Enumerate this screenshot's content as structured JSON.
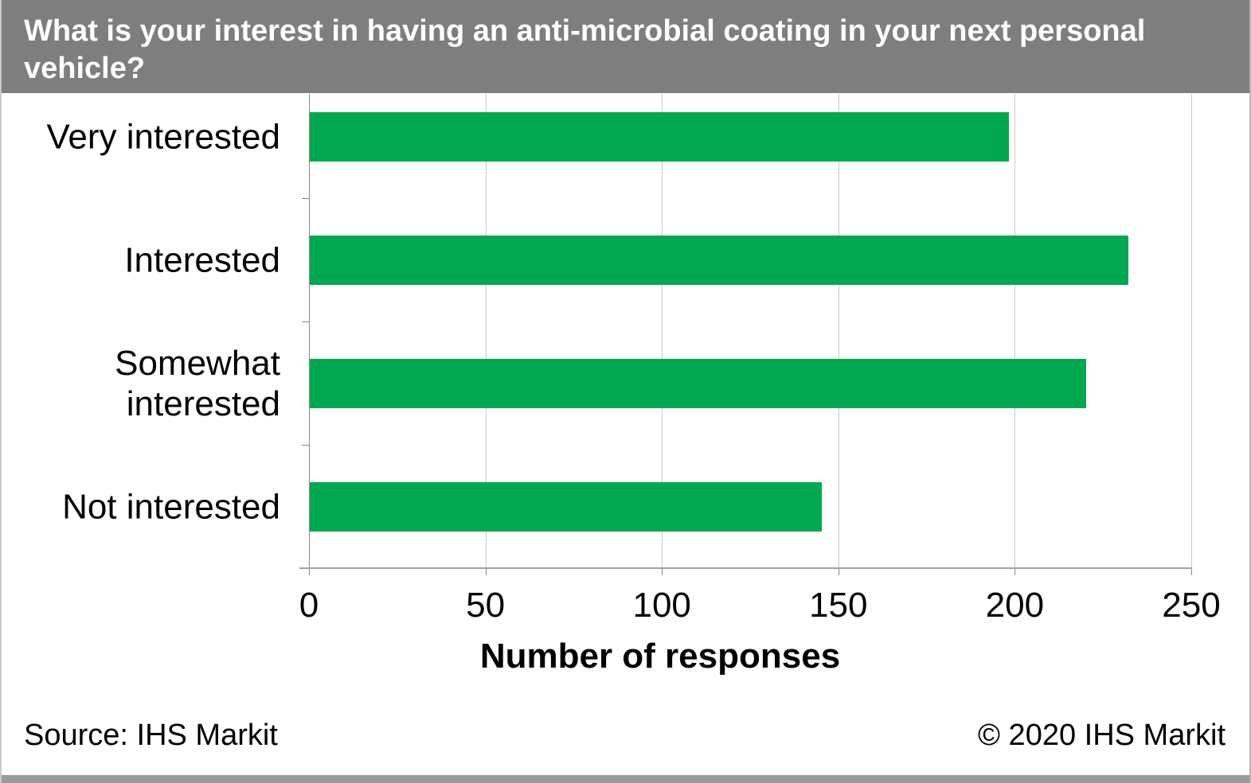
{
  "title": "What is your interest in having an anti-microbial coating in your next personal vehicle?",
  "chart_data": {
    "type": "bar",
    "orientation": "horizontal",
    "categories": [
      "Very interested",
      "Interested",
      "Somewhat interested",
      "Not interested"
    ],
    "values": [
      198,
      232,
      220,
      145
    ],
    "title": "What is your interest in having an anti-microbial coating in your next personal vehicle?",
    "xlabel": "Number of responses",
    "ylabel": "",
    "xlim": [
      0,
      250
    ],
    "xticks": [
      0,
      50,
      100,
      150,
      200,
      250
    ],
    "grid": true,
    "legend": false,
    "bar_color": "#00a84f"
  },
  "footer": {
    "source": "Source: IHS Markit",
    "copyright": "© 2020 IHS Markit"
  },
  "colors": {
    "title_bg": "#7e7e7e",
    "title_text": "#ffffff",
    "bar_green": "#00a84f",
    "gridline": "#c9c9c9",
    "axis_line": "#a3a3a3",
    "bottom_strip": "#9b9b9b"
  }
}
